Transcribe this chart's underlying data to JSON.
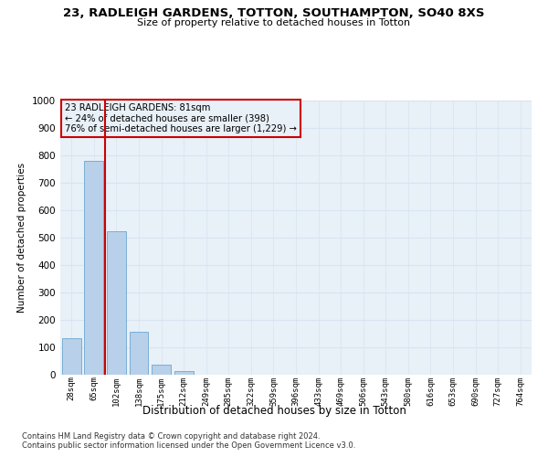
{
  "title1": "23, RADLEIGH GARDENS, TOTTON, SOUTHAMPTON, SO40 8XS",
  "title2": "Size of property relative to detached houses in Totton",
  "xlabel": "Distribution of detached houses by size in Totton",
  "ylabel": "Number of detached properties",
  "bar_labels": [
    "28sqm",
    "65sqm",
    "102sqm",
    "138sqm",
    "175sqm",
    "212sqm",
    "249sqm",
    "285sqm",
    "322sqm",
    "359sqm",
    "396sqm",
    "433sqm",
    "469sqm",
    "506sqm",
    "543sqm",
    "580sqm",
    "616sqm",
    "653sqm",
    "690sqm",
    "727sqm",
    "764sqm"
  ],
  "bar_values": [
    133,
    780,
    523,
    158,
    38,
    14,
    0,
    0,
    0,
    0,
    0,
    0,
    0,
    0,
    0,
    0,
    0,
    0,
    0,
    0,
    0
  ],
  "bar_color": "#b8d0ea",
  "bar_edge_color": "#7aafd4",
  "vline_x": 1.5,
  "vline_color": "#cc0000",
  "annotation_text": "23 RADLEIGH GARDENS: 81sqm\n← 24% of detached houses are smaller (398)\n76% of semi-detached houses are larger (1,229) →",
  "annotation_box_color": "#cc0000",
  "ylim": [
    0,
    1000
  ],
  "yticks": [
    0,
    100,
    200,
    300,
    400,
    500,
    600,
    700,
    800,
    900,
    1000
  ],
  "footnote1": "Contains HM Land Registry data © Crown copyright and database right 2024.",
  "footnote2": "Contains public sector information licensed under the Open Government Licence v3.0.",
  "bg_color": "#ffffff",
  "grid_color": "#d8e4f0",
  "ax_bg_color": "#e8f0f8"
}
